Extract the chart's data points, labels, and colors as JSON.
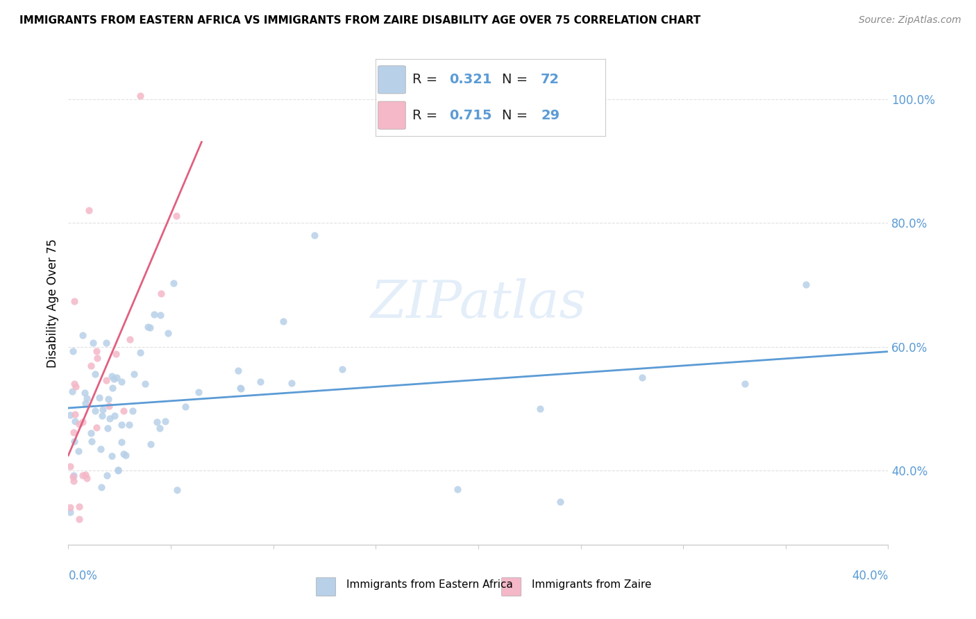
{
  "title": "IMMIGRANTS FROM EASTERN AFRICA VS IMMIGRANTS FROM ZAIRE DISABILITY AGE OVER 75 CORRELATION CHART",
  "source": "Source: ZipAtlas.com",
  "ylabel": "Disability Age Over 75",
  "xlim": [
    0.0,
    0.4
  ],
  "ylim": [
    0.28,
    1.06
  ],
  "R_blue": 0.321,
  "N_blue": 72,
  "R_pink": 0.715,
  "N_pink": 29,
  "blue_color": "#b8d0e8",
  "blue_line_color": "#5b9bd5",
  "pink_color": "#f4b8c8",
  "pink_line_color": "#e06080",
  "scatter_size": 55,
  "scatter_alpha": 0.85,
  "watermark": "ZIPatlas",
  "ytick_vals": [
    0.4,
    0.6,
    0.8,
    1.0
  ],
  "ytick_labels": [
    "40.0%",
    "60.0%",
    "80.0%",
    "100.0%"
  ],
  "grid_color": "#e0e0e0",
  "title_fontsize": 11,
  "source_fontsize": 10,
  "legend_fontsize": 14
}
